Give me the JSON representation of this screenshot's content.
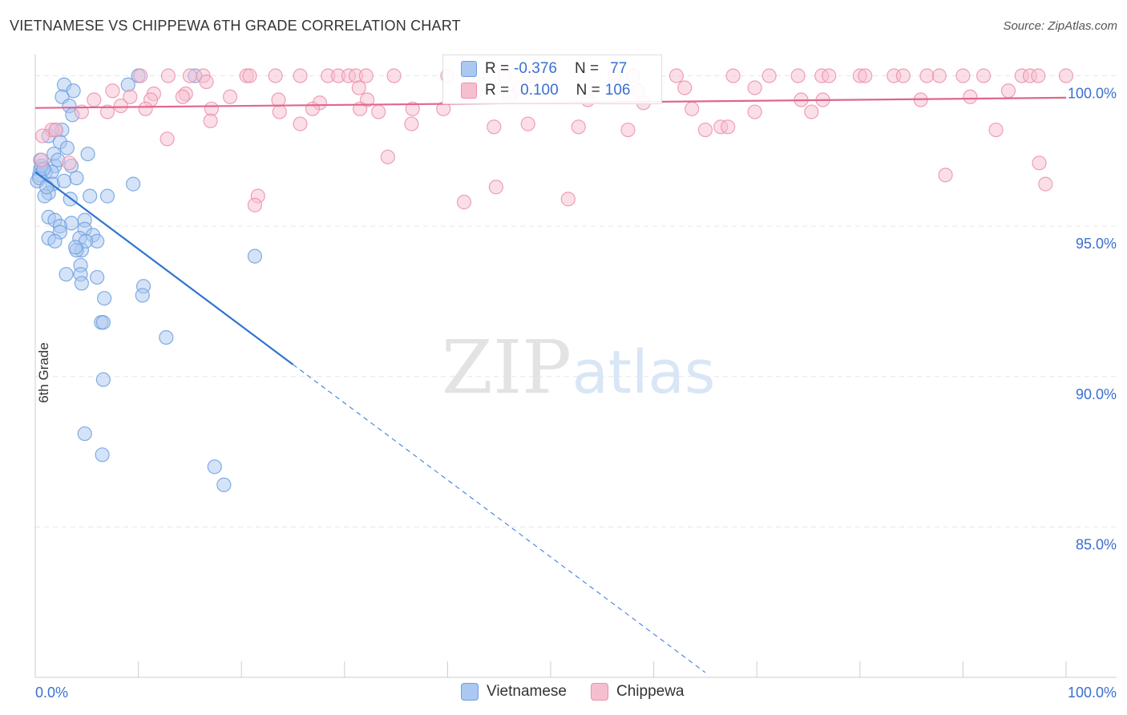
{
  "chart_data": {
    "type": "scatter",
    "title": "VIETNAMESE VS CHIPPEWA 6TH GRADE CORRELATION CHART",
    "source": "Source: ZipAtlas.com",
    "xlabel": "",
    "ylabel": "6th Grade",
    "xlim": [
      0,
      100
    ],
    "ylim": [
      80.0,
      100.6
    ],
    "x_tick_labels": [
      "0.0%",
      "100.0%"
    ],
    "y_ticks": [
      {
        "value": 100.0,
        "label": "100.0%"
      },
      {
        "value": 95.0,
        "label": "95.0%"
      },
      {
        "value": 90.0,
        "label": "90.0%"
      },
      {
        "value": 85.0,
        "label": "85.0%"
      }
    ],
    "watermark": {
      "zip": "ZIP",
      "atlas": "atlas"
    },
    "colors": {
      "vietnamese_fill": "#aac8f0",
      "vietnamese_stroke": "#6f9fe0",
      "vietnamese_line": "#2f74d0",
      "chippewa_fill": "#f6bfd0",
      "chippewa_stroke": "#ec8fac",
      "chippewa_line": "#e0668e",
      "value_text": "#3a6fd0",
      "grid": "#e6e6e6"
    },
    "stats": [
      {
        "swatch": "vietnamese",
        "r_label": "R =",
        "r": "-0.376",
        "n_label": "N =",
        "n": "77"
      },
      {
        "swatch": "chippewa",
        "r_label": "R =",
        "r": "0.100",
        "n_label": "N =",
        "n": "106"
      }
    ],
    "series": [
      {
        "name": "Vietnamese",
        "key": "vietnamese",
        "trend": {
          "x0": 0.0,
          "y0": 96.8,
          "x_solid_end": 25.0,
          "x_dash_end": 65.0,
          "slope": -0.256
        },
        "points": [
          [
            2.8,
            99.7
          ],
          [
            3.7,
            99.5
          ],
          [
            9.0,
            99.7
          ],
          [
            10.0,
            100.0
          ],
          [
            15.5,
            100.0
          ],
          [
            2.6,
            99.3
          ],
          [
            3.3,
            99.0
          ],
          [
            3.6,
            98.7
          ],
          [
            2.0,
            98.2
          ],
          [
            2.6,
            98.2
          ],
          [
            1.3,
            98.0
          ],
          [
            2.4,
            97.8
          ],
          [
            3.1,
            97.6
          ],
          [
            5.1,
            97.4
          ],
          [
            1.8,
            97.4
          ],
          [
            0.5,
            97.2
          ],
          [
            1.9,
            97.0
          ],
          [
            3.5,
            97.0
          ],
          [
            0.5,
            96.9
          ],
          [
            1.0,
            96.8
          ],
          [
            0.4,
            96.7
          ],
          [
            1.6,
            96.8
          ],
          [
            4.0,
            96.6
          ],
          [
            0.2,
            96.5
          ],
          [
            0.4,
            96.6
          ],
          [
            1.7,
            96.4
          ],
          [
            1.3,
            96.1
          ],
          [
            0.9,
            96.0
          ],
          [
            5.3,
            96.0
          ],
          [
            7.0,
            96.0
          ],
          [
            3.4,
            95.9
          ],
          [
            9.5,
            96.4
          ],
          [
            1.3,
            95.3
          ],
          [
            1.9,
            95.2
          ],
          [
            3.5,
            95.1
          ],
          [
            2.4,
            95.0
          ],
          [
            4.8,
            95.2
          ],
          [
            4.8,
            94.9
          ],
          [
            2.4,
            94.8
          ],
          [
            1.3,
            94.6
          ],
          [
            4.3,
            94.6
          ],
          [
            5.6,
            94.7
          ],
          [
            1.9,
            94.5
          ],
          [
            6.0,
            94.5
          ],
          [
            4.5,
            94.2
          ],
          [
            4.0,
            94.2
          ],
          [
            21.3,
            94.0
          ],
          [
            4.4,
            93.7
          ],
          [
            4.4,
            93.4
          ],
          [
            6.0,
            93.3
          ],
          [
            3.0,
            93.4
          ],
          [
            4.5,
            93.1
          ],
          [
            10.5,
            93.0
          ],
          [
            10.4,
            92.7
          ],
          [
            6.7,
            92.6
          ],
          [
            6.4,
            91.8
          ],
          [
            6.6,
            91.8
          ],
          [
            12.7,
            91.3
          ],
          [
            6.6,
            89.9
          ],
          [
            4.8,
            88.1
          ],
          [
            6.5,
            87.4
          ],
          [
            17.4,
            87.0
          ],
          [
            18.3,
            86.4
          ],
          [
            0.6,
            97.0
          ],
          [
            1.1,
            96.3
          ],
          [
            2.2,
            97.2
          ],
          [
            0.8,
            96.9
          ],
          [
            4.9,
            94.5
          ],
          [
            3.9,
            94.3
          ],
          [
            2.8,
            96.5
          ]
        ]
      },
      {
        "name": "Chippewa",
        "key": "chippewa",
        "trend": {
          "x0": 0.0,
          "y0": 98.93,
          "x_end": 100.0,
          "y_end": 99.27
        },
        "points": [
          [
            10.2,
            100.0
          ],
          [
            12.9,
            100.0
          ],
          [
            15.0,
            100.0
          ],
          [
            16.3,
            100.0
          ],
          [
            20.5,
            100.0
          ],
          [
            20.8,
            100.0
          ],
          [
            23.3,
            100.0
          ],
          [
            25.7,
            100.0
          ],
          [
            28.4,
            100.0
          ],
          [
            29.4,
            100.0
          ],
          [
            30.4,
            100.0
          ],
          [
            31.1,
            100.0
          ],
          [
            32.1,
            100.0
          ],
          [
            34.8,
            100.0
          ],
          [
            40.0,
            100.0
          ],
          [
            42.0,
            100.0
          ],
          [
            45.5,
            100.0
          ],
          [
            48.0,
            100.0
          ],
          [
            56.2,
            100.0
          ],
          [
            58.0,
            100.0
          ],
          [
            62.2,
            100.0
          ],
          [
            67.7,
            100.0
          ],
          [
            71.2,
            100.0
          ],
          [
            74.0,
            100.0
          ],
          [
            76.3,
            100.0
          ],
          [
            77.0,
            100.0
          ],
          [
            80.0,
            100.0
          ],
          [
            80.5,
            100.0
          ],
          [
            83.3,
            100.0
          ],
          [
            84.2,
            100.0
          ],
          [
            86.5,
            100.0
          ],
          [
            87.7,
            100.0
          ],
          [
            90.0,
            100.0
          ],
          [
            92.0,
            100.0
          ],
          [
            95.7,
            100.0
          ],
          [
            96.5,
            100.0
          ],
          [
            97.3,
            100.0
          ],
          [
            100.0,
            100.0
          ],
          [
            16.6,
            99.8
          ],
          [
            31.4,
            99.6
          ],
          [
            43.4,
            99.7
          ],
          [
            47.0,
            99.6
          ],
          [
            58.5,
            99.5
          ],
          [
            63.0,
            99.6
          ],
          [
            69.8,
            99.6
          ],
          [
            7.5,
            99.5
          ],
          [
            11.5,
            99.4
          ],
          [
            14.6,
            99.4
          ],
          [
            5.7,
            99.2
          ],
          [
            9.2,
            99.3
          ],
          [
            11.2,
            99.2
          ],
          [
            14.3,
            99.3
          ],
          [
            18.9,
            99.3
          ],
          [
            23.6,
            99.2
          ],
          [
            27.6,
            99.1
          ],
          [
            32.2,
            99.2
          ],
          [
            46.0,
            99.3
          ],
          [
            53.6,
            99.2
          ],
          [
            59.0,
            99.1
          ],
          [
            74.3,
            99.2
          ],
          [
            76.4,
            99.2
          ],
          [
            85.9,
            99.2
          ],
          [
            90.7,
            99.3
          ],
          [
            94.4,
            99.5
          ],
          [
            8.3,
            99.0
          ],
          [
            10.7,
            98.9
          ],
          [
            17.1,
            98.9
          ],
          [
            23.7,
            98.8
          ],
          [
            26.9,
            98.9
          ],
          [
            33.3,
            98.8
          ],
          [
            36.6,
            98.9
          ],
          [
            39.6,
            98.9
          ],
          [
            63.7,
            98.9
          ],
          [
            69.8,
            98.8
          ],
          [
            4.5,
            98.8
          ],
          [
            7.0,
            98.8
          ],
          [
            1.6,
            98.2
          ],
          [
            2.0,
            98.2
          ],
          [
            0.7,
            98.0
          ],
          [
            12.8,
            97.9
          ],
          [
            17.0,
            98.5
          ],
          [
            25.7,
            98.4
          ],
          [
            36.5,
            98.4
          ],
          [
            44.5,
            98.3
          ],
          [
            47.8,
            98.4
          ],
          [
            52.7,
            98.3
          ],
          [
            57.5,
            98.2
          ],
          [
            65.0,
            98.2
          ],
          [
            66.5,
            98.3
          ],
          [
            67.2,
            98.3
          ],
          [
            75.3,
            98.8
          ],
          [
            93.2,
            98.2
          ],
          [
            0.6,
            97.2
          ],
          [
            3.3,
            97.1
          ],
          [
            34.2,
            97.3
          ],
          [
            97.4,
            97.1
          ],
          [
            44.7,
            96.3
          ],
          [
            41.6,
            95.8
          ],
          [
            51.7,
            95.9
          ],
          [
            21.6,
            96.0
          ],
          [
            21.3,
            95.7
          ],
          [
            88.3,
            96.7
          ],
          [
            98.0,
            96.4
          ],
          [
            31.5,
            98.9
          ]
        ]
      }
    ],
    "legend": [
      "Vietnamese",
      "Chippewa"
    ]
  }
}
